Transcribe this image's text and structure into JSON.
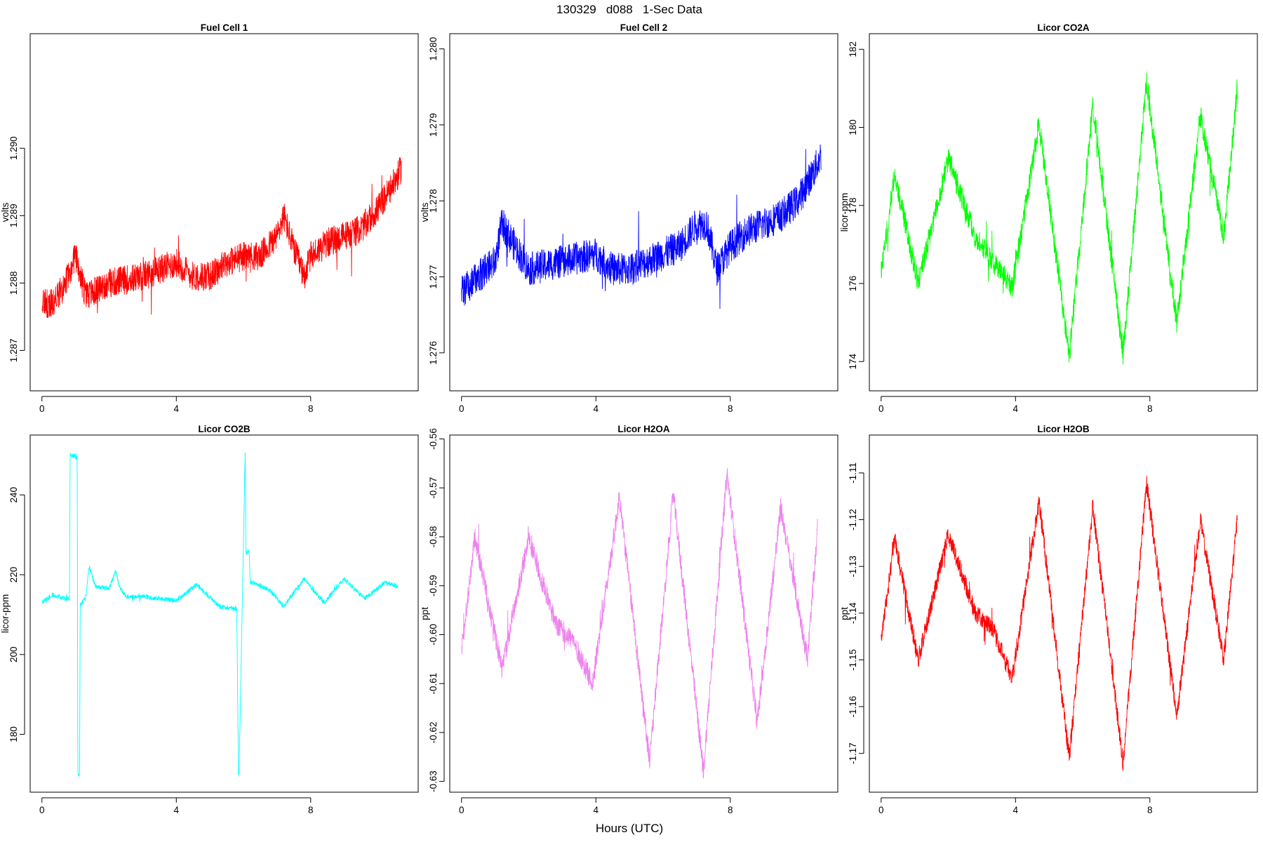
{
  "figure": {
    "title": "130329   d088   1-Sec Data",
    "xlabel": "Hours (UTC)"
  },
  "chart_data": [
    {
      "type": "line",
      "title": "Fuel Cell 1",
      "ylabel": "volts",
      "color": "#ff0000",
      "xlim": [
        -0.35,
        11.2
      ],
      "ylim": [
        1.2864,
        1.2917
      ],
      "xticks": [
        0,
        4,
        8
      ],
      "yticks": [
        1.287,
        1.288,
        1.289,
        1.29
      ],
      "ytick_labels": [
        "1.287",
        "1.288",
        "1.289",
        "1.290"
      ],
      "noise": 0.00022,
      "x": [
        0,
        0.3,
        0.6,
        1.0,
        1.3,
        2.0,
        3.0,
        4.0,
        4.5,
        5.0,
        5.5,
        6.0,
        6.5,
        7.0,
        7.2,
        7.5,
        7.8,
        8.0,
        8.5,
        9.0,
        9.5,
        10.0,
        10.5,
        10.7
      ],
      "values": [
        1.2877,
        1.2877,
        1.2879,
        1.2884,
        1.2878,
        1.288,
        1.2881,
        1.2883,
        1.2881,
        1.2881,
        1.2883,
        1.2884,
        1.2884,
        1.2887,
        1.289,
        1.2885,
        1.2881,
        1.2884,
        1.2886,
        1.2887,
        1.2888,
        1.2891,
        1.2895,
        1.2897
      ]
    },
    {
      "type": "line",
      "title": "Fuel Cell 2",
      "ylabel": "volts",
      "color": "#0000ff",
      "xlim": [
        -0.35,
        11.2
      ],
      "ylim": [
        1.2755,
        1.2802
      ],
      "xticks": [
        0,
        4,
        8
      ],
      "yticks": [
        1.276,
        1.277,
        1.278,
        1.279,
        1.28
      ],
      "ytick_labels": [
        "1.276",
        "1.277",
        "1.278",
        "1.279",
        "1.280"
      ],
      "noise": 0.00022,
      "x": [
        0,
        0.5,
        1.0,
        1.2,
        2.0,
        3.0,
        4.0,
        4.5,
        5.0,
        5.5,
        6.0,
        6.5,
        7.0,
        7.3,
        7.6,
        8.0,
        8.5,
        9.0,
        9.5,
        10.0,
        10.5,
        10.7
      ],
      "values": [
        1.2768,
        1.277,
        1.2772,
        1.2777,
        1.2771,
        1.2772,
        1.2773,
        1.2771,
        1.2771,
        1.2772,
        1.2773,
        1.2774,
        1.2777,
        1.2777,
        1.2771,
        1.2774,
        1.2776,
        1.2777,
        1.2778,
        1.278,
        1.2784,
        1.2786
      ]
    },
    {
      "type": "line",
      "title": "Licor CO2A",
      "ylabel": "licor-ppm",
      "color": "#00ff00",
      "xlim": [
        -0.35,
        11.2
      ],
      "ylim": [
        173.25,
        182.4
      ],
      "xticks": [
        0,
        4,
        8
      ],
      "yticks": [
        174,
        176,
        178,
        180,
        182
      ],
      "ytick_labels": [
        "174",
        "176",
        "178",
        "180",
        "182"
      ],
      "noise": 0.3,
      "x": [
        0,
        0.4,
        1.1,
        2.0,
        2.8,
        3.9,
        4.7,
        5.6,
        6.3,
        7.2,
        7.9,
        8.8,
        9.5,
        10.2,
        10.6
      ],
      "values": [
        176.3,
        178.8,
        176.0,
        179.2,
        177.2,
        175.9,
        180.1,
        174.1,
        180.6,
        174.2,
        181.2,
        175.0,
        180.3,
        177.2,
        181.0
      ]
    },
    {
      "type": "line",
      "title": "Licor CO2B",
      "ylabel": "licor-ppm",
      "color": "#00ffff",
      "xlim": [
        -0.35,
        11.2
      ],
      "ylim": [
        165.5,
        255.0
      ],
      "xticks": [
        0,
        4,
        8
      ],
      "yticks": [
        180,
        200,
        220,
        240
      ],
      "ytick_labels": [
        "180",
        "200",
        "220",
        "240"
      ],
      "noise": 0.6,
      "x": [
        0,
        0.3,
        0.7,
        0.82,
        0.84,
        1.05,
        1.07,
        1.12,
        1.14,
        1.3,
        1.4,
        1.6,
        2.0,
        2.2,
        2.3,
        2.5,
        3.0,
        3.5,
        4.0,
        4.6,
        5.3,
        5.8,
        5.85,
        5.87,
        6.05,
        6.07,
        6.17,
        6.2,
        6.3,
        6.8,
        7.2,
        7.8,
        8.4,
        9.0,
        9.6,
        10.2,
        10.6
      ],
      "values": [
        213.0,
        215.0,
        214.0,
        214.0,
        250.0,
        249.5,
        170.0,
        170.0,
        212.5,
        214.0,
        222.0,
        217.0,
        216.5,
        221.0,
        217.0,
        214.5,
        214.5,
        214.0,
        213.5,
        217.5,
        212.0,
        211.5,
        170.0,
        171.0,
        251.0,
        225.5,
        225.5,
        218.0,
        218.0,
        216.0,
        212.0,
        219.0,
        213.0,
        219.0,
        214.0,
        218.0,
        217.0
      ]
    },
    {
      "type": "line",
      "title": "Licor H2OA",
      "ylabel": "ppt",
      "color": "#ee82ee",
      "xlim": [
        -0.35,
        11.2
      ],
      "ylim": [
        -0.6322,
        -0.5592
      ],
      "xticks": [
        0,
        4,
        8
      ],
      "yticks": [
        -0.63,
        -0.62,
        -0.61,
        -0.6,
        -0.59,
        -0.58,
        -0.57,
        -0.56
      ],
      "ytick_labels": [
        "-0.63",
        "-0.62",
        "-0.61",
        "-0.60",
        "-0.59",
        "-0.58",
        "-0.57",
        "-0.56"
      ],
      "noise": 0.0022,
      "x": [
        0,
        0.4,
        1.2,
        2.0,
        2.8,
        3.3,
        3.9,
        4.7,
        5.6,
        6.3,
        7.2,
        7.9,
        8.8,
        9.5,
        10.3,
        10.6
      ],
      "values": [
        -0.603,
        -0.58,
        -0.607,
        -0.58,
        -0.598,
        -0.601,
        -0.61,
        -0.572,
        -0.626,
        -0.571,
        -0.628,
        -0.567,
        -0.618,
        -0.574,
        -0.605,
        -0.578
      ]
    },
    {
      "type": "line",
      "title": "Licor H2OB",
      "ylabel": "ppt",
      "color": "#ff0000",
      "xlim": [
        -0.35,
        11.2
      ],
      "ylim": [
        -1.1783,
        -1.1019
      ],
      "xticks": [
        0,
        4,
        8
      ],
      "yticks": [
        -1.17,
        -1.16,
        -1.15,
        -1.14,
        -1.13,
        -1.12,
        -1.11
      ],
      "ytick_labels": [
        "-1.17",
        "-1.16",
        "-1.15",
        "-1.14",
        "-1.13",
        "-1.12",
        "-1.11"
      ],
      "noise": 0.002,
      "x": [
        0,
        0.4,
        1.1,
        2.0,
        2.8,
        3.3,
        3.9,
        4.7,
        5.6,
        6.3,
        7.2,
        7.9,
        8.8,
        9.5,
        10.2,
        10.6
      ],
      "values": [
        -1.146,
        -1.124,
        -1.15,
        -1.123,
        -1.14,
        -1.143,
        -1.154,
        -1.116,
        -1.171,
        -1.117,
        -1.172,
        -1.112,
        -1.162,
        -1.12,
        -1.15,
        -1.12
      ]
    }
  ]
}
